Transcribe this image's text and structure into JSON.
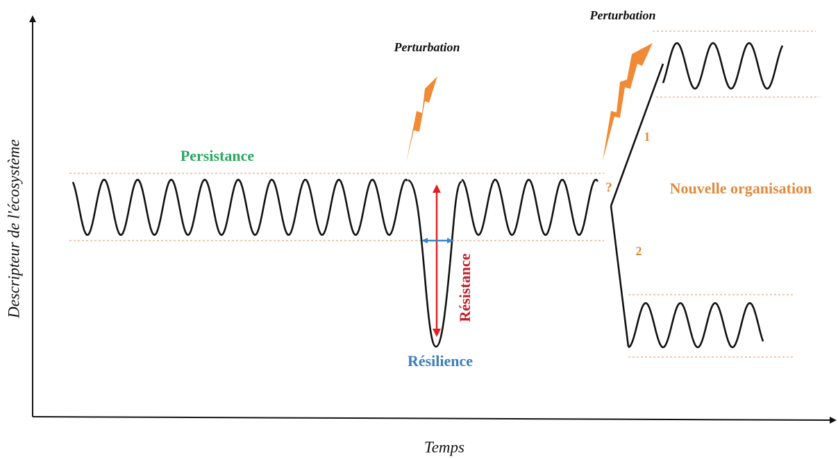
{
  "axes": {
    "x_label": "Temps",
    "y_label": "Descripteur de l'écosystème"
  },
  "annotations": {
    "perturbation_1": "Perturbation",
    "perturbation_2": "Perturbation",
    "persistance": "Persistance",
    "resistance": "Résistance",
    "resilience": "Résilience",
    "question": "?",
    "path_1": "1",
    "path_2": "2",
    "new_organisation": "Nouvelle organisation"
  }
}
